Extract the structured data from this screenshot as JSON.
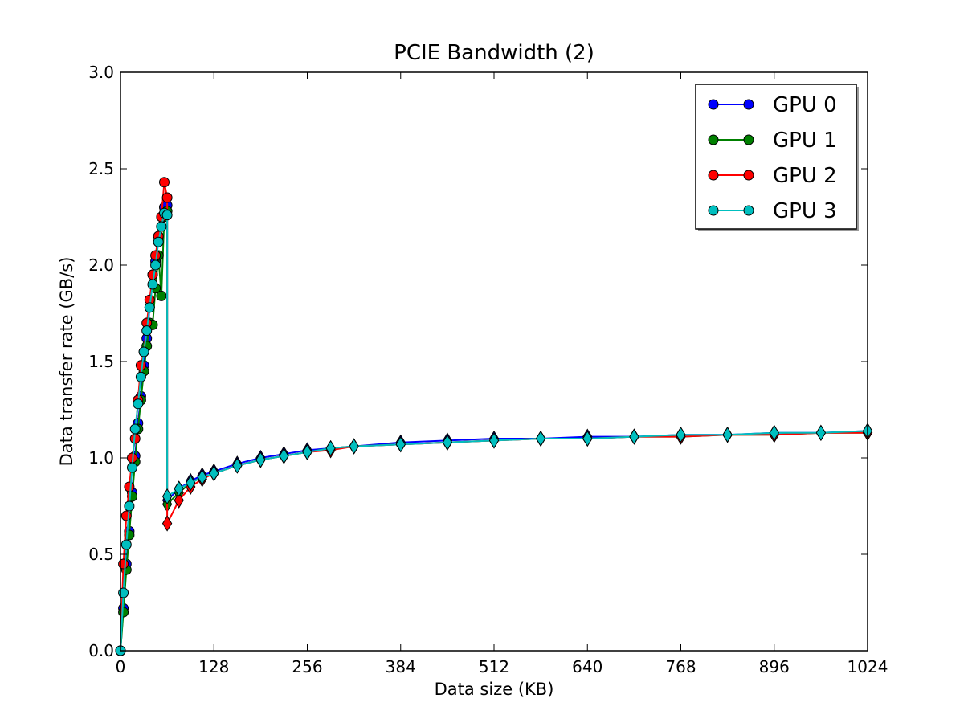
{
  "chart_data": {
    "type": "line",
    "title": "PCIE Bandwidth (2)",
    "xlabel": "Data size (KB)",
    "ylabel": "Data transfer rate (GB/s)",
    "xlim": [
      0,
      1024
    ],
    "ylim": [
      0,
      3.0
    ],
    "xticks": [
      "0",
      "128",
      "256",
      "384",
      "512",
      "640",
      "768",
      "896",
      "1024"
    ],
    "yticks": [
      "0.0",
      "0.5",
      "1.0",
      "1.5",
      "2.0",
      "2.5",
      "3.0"
    ],
    "grid": false,
    "legend_position": "top-right",
    "markers": {
      "small_sizes": "circle",
      "large_sizes": "diamond"
    },
    "series": [
      {
        "name": "GPU 0",
        "color": "#0000ff",
        "low_size_x": [
          0,
          4,
          8,
          12,
          16,
          20,
          24,
          28,
          32,
          36,
          40,
          44,
          48,
          52,
          56,
          60,
          64
        ],
        "low_size_y": [
          0.0,
          0.22,
          0.45,
          0.62,
          0.82,
          1.01,
          1.18,
          1.32,
          1.48,
          1.62,
          1.78,
          1.95,
          2.02,
          2.12,
          2.2,
          2.3,
          2.31
        ],
        "high_size_x": [
          64,
          80,
          96,
          112,
          128,
          160,
          192,
          224,
          256,
          288,
          320,
          384,
          448,
          512,
          576,
          640,
          704,
          768,
          832,
          896,
          960,
          1024
        ],
        "high_size_y": [
          0.78,
          0.84,
          0.88,
          0.91,
          0.93,
          0.97,
          1.0,
          1.02,
          1.04,
          1.05,
          1.06,
          1.08,
          1.09,
          1.1,
          1.1,
          1.11,
          1.11,
          1.12,
          1.12,
          1.13,
          1.13,
          1.14
        ]
      },
      {
        "name": "GPU 1",
        "color": "#008000",
        "low_size_x": [
          0,
          4,
          8,
          12,
          16,
          20,
          24,
          28,
          32,
          36,
          40,
          44,
          48,
          52,
          56,
          60,
          64
        ],
        "low_size_y": [
          0.0,
          0.2,
          0.42,
          0.6,
          0.8,
          0.98,
          1.15,
          1.3,
          1.45,
          1.58,
          1.7,
          1.69,
          1.88,
          2.05,
          1.84,
          2.25,
          2.28
        ],
        "high_size_x": [
          64,
          80,
          96,
          112,
          128,
          160,
          192,
          224,
          256,
          288,
          320,
          384,
          448,
          512,
          576,
          640,
          704,
          768,
          832,
          896,
          960,
          1024
        ],
        "high_size_y": [
          0.76,
          0.82,
          0.87,
          0.9,
          0.92,
          0.96,
          0.99,
          1.01,
          1.03,
          1.05,
          1.06,
          1.07,
          1.08,
          1.09,
          1.1,
          1.1,
          1.11,
          1.11,
          1.12,
          1.12,
          1.13,
          1.13
        ]
      },
      {
        "name": "GPU 2",
        "color": "#ff0000",
        "low_size_x": [
          0,
          4,
          8,
          12,
          16,
          20,
          24,
          28,
          32,
          36,
          40,
          44,
          48,
          52,
          56,
          60,
          64
        ],
        "low_size_y": [
          0.0,
          0.45,
          0.7,
          0.85,
          1.0,
          1.1,
          1.3,
          1.48,
          1.55,
          1.7,
          1.82,
          1.95,
          2.05,
          2.15,
          2.25,
          2.43,
          2.35
        ],
        "high_size_x": [
          64,
          80,
          96,
          112,
          128,
          160,
          192,
          224,
          256,
          288,
          320,
          384,
          448,
          512,
          576,
          640,
          704,
          768,
          832,
          896,
          960,
          1024
        ],
        "high_size_y": [
          0.66,
          0.78,
          0.85,
          0.89,
          0.92,
          0.96,
          0.99,
          1.01,
          1.03,
          1.04,
          1.06,
          1.07,
          1.08,
          1.09,
          1.1,
          1.1,
          1.11,
          1.11,
          1.12,
          1.12,
          1.13,
          1.13
        ]
      },
      {
        "name": "GPU 3",
        "color": "#00bfbf",
        "low_size_x": [
          0,
          4,
          8,
          12,
          16,
          20,
          24,
          28,
          32,
          36,
          40,
          44,
          48,
          52,
          56,
          60,
          64
        ],
        "low_size_y": [
          0.0,
          0.3,
          0.55,
          0.75,
          0.95,
          1.15,
          1.28,
          1.42,
          1.55,
          1.66,
          1.78,
          1.9,
          2.0,
          2.12,
          2.2,
          2.27,
          2.26
        ],
        "high_size_x": [
          64,
          80,
          96,
          112,
          128,
          160,
          192,
          224,
          256,
          288,
          320,
          384,
          448,
          512,
          576,
          640,
          704,
          768,
          832,
          896,
          960,
          1024
        ],
        "high_size_y": [
          0.8,
          0.84,
          0.87,
          0.9,
          0.92,
          0.96,
          0.99,
          1.01,
          1.03,
          1.05,
          1.06,
          1.07,
          1.08,
          1.09,
          1.1,
          1.1,
          1.11,
          1.12,
          1.12,
          1.13,
          1.13,
          1.14
        ]
      }
    ]
  }
}
